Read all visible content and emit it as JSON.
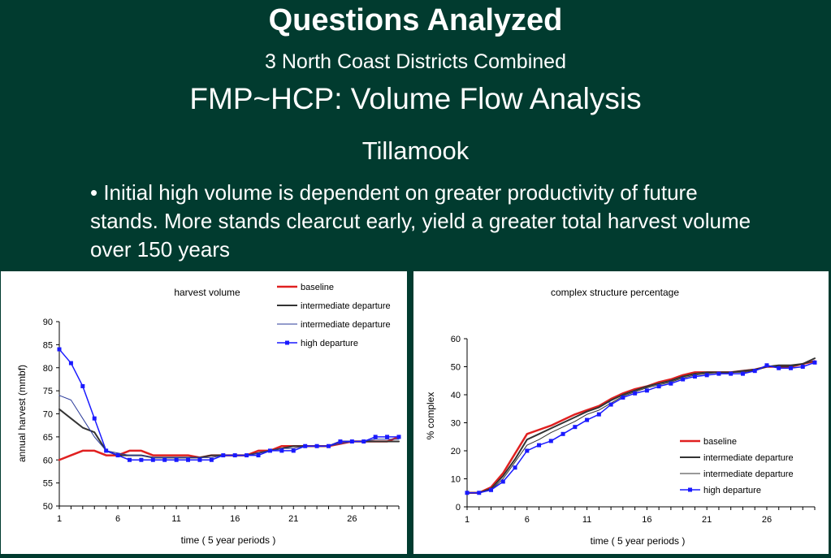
{
  "slide": {
    "title": "Questions Analyzed",
    "subtitle1": "3 North Coast Districts Combined",
    "subtitle2": "FMP~HCP: Volume Flow Analysis",
    "subtitle3": "Tillamook",
    "bullet": "• Initial high volume is dependent on greater productivity of future stands. More stands clearcut early, yield a greater total harvest volume over 150 years"
  },
  "colors": {
    "background": "#013b2f",
    "baseline": "#e02020",
    "intermediate_thick": "#333333",
    "intermediate_thin": "#2a3a9a",
    "high": "#1a1aff"
  },
  "chart_data": [
    {
      "type": "line",
      "title": "harvest volume",
      "xlabel": "time ( 5 year periods )",
      "ylabel": "annual harvest (mmbf)",
      "ylim": [
        50,
        90
      ],
      "xlim": [
        1,
        30
      ],
      "yticks": [
        50,
        55,
        60,
        65,
        70,
        75,
        80,
        85,
        90
      ],
      "xticks": [
        1,
        6,
        11,
        16,
        21,
        26
      ],
      "grid": false,
      "legend_position": "top-right",
      "x": [
        1,
        2,
        3,
        4,
        5,
        6,
        7,
        8,
        9,
        10,
        11,
        12,
        13,
        14,
        15,
        16,
        17,
        18,
        19,
        20,
        21,
        22,
        23,
        24,
        25,
        26,
        27,
        28,
        29,
        30
      ],
      "series": [
        {
          "name": "baseline",
          "color": "#e02020",
          "width": 2.5,
          "marker": false,
          "values": [
            60,
            61,
            62,
            62,
            61,
            61,
            62,
            62,
            61,
            61,
            61,
            61,
            60.5,
            61,
            61,
            61,
            61,
            62,
            62,
            63,
            63,
            63,
            63,
            63,
            63.5,
            64,
            64,
            64,
            64,
            65
          ]
        },
        {
          "name": "intermediate departure",
          "color": "#333333",
          "width": 2,
          "marker": false,
          "values": [
            71,
            69,
            67,
            66,
            62,
            61,
            61,
            61,
            60.5,
            60.5,
            60.5,
            60.5,
            60.5,
            61,
            61,
            61,
            61,
            61.5,
            62,
            62.5,
            63,
            63,
            63,
            63,
            64,
            64,
            64,
            64,
            64,
            64
          ]
        },
        {
          "name": "intermediate departure",
          "color": "#2a3a9a",
          "width": 1,
          "marker": false,
          "values": [
            74,
            73,
            69,
            65,
            62,
            61.5,
            61,
            61,
            60.5,
            60.5,
            60.5,
            60.5,
            60.5,
            60.5,
            61,
            61,
            61,
            61.5,
            62,
            62.5,
            62.5,
            63,
            63,
            63,
            63.5,
            64,
            64,
            64.5,
            64.5,
            64.5
          ]
        },
        {
          "name": "high departure",
          "color": "#1a1aff",
          "width": 1.5,
          "marker": true,
          "values": [
            84,
            81,
            76,
            69,
            62,
            61,
            60,
            60,
            60,
            60,
            60,
            60,
            60,
            60,
            61,
            61,
            61,
            61,
            62,
            62,
            62,
            63,
            63,
            63,
            64,
            64,
            64,
            65,
            65,
            65
          ]
        }
      ]
    },
    {
      "type": "line",
      "title": "complex structure percentage",
      "xlabel": "time ( 5 year periods )",
      "ylabel": "% complex",
      "ylim": [
        0,
        60
      ],
      "xlim": [
        1,
        30
      ],
      "yticks": [
        0,
        10,
        20,
        30,
        40,
        50,
        60
      ],
      "xticks": [
        1,
        6,
        11,
        16,
        21,
        26
      ],
      "grid": false,
      "legend_position": "bottom-right",
      "x": [
        1,
        2,
        3,
        4,
        5,
        6,
        7,
        8,
        9,
        10,
        11,
        12,
        13,
        14,
        15,
        16,
        17,
        18,
        19,
        20,
        21,
        22,
        23,
        24,
        25,
        26,
        27,
        28,
        29,
        30
      ],
      "series": [
        {
          "name": "baseline",
          "color": "#e02020",
          "width": 2.5,
          "marker": false,
          "values": [
            5,
            5,
            7,
            12,
            19,
            26,
            27.5,
            29,
            31,
            33,
            34.5,
            36,
            38.5,
            40.5,
            42,
            43,
            44.5,
            45.5,
            47,
            48,
            48,
            48,
            48,
            48.5,
            49,
            50,
            50,
            50,
            51,
            52
          ]
        },
        {
          "name": "intermediate departure",
          "color": "#333333",
          "width": 2,
          "marker": false,
          "values": [
            5,
            5,
            6.5,
            11,
            17,
            24,
            26,
            28,
            30,
            32,
            34,
            35.5,
            38,
            40,
            41.5,
            43,
            44,
            45,
            46.5,
            47.5,
            48,
            48,
            48,
            48.5,
            49,
            50,
            50.5,
            50.5,
            51,
            53
          ]
        },
        {
          "name": "intermediate departure",
          "color": "#333333",
          "width": 1,
          "marker": false,
          "values": [
            5,
            5,
            6,
            10,
            16,
            22,
            24,
            26.5,
            28.5,
            30.5,
            33,
            34.5,
            37,
            39.5,
            41,
            42.5,
            43.5,
            44.5,
            46,
            47,
            47.5,
            48,
            48,
            48,
            48.5,
            50,
            50,
            50,
            51,
            52
          ]
        },
        {
          "name": "high departure",
          "color": "#1a1aff",
          "width": 1.5,
          "marker": true,
          "values": [
            5,
            5,
            6,
            9,
            14,
            20,
            22,
            23.5,
            26,
            28.5,
            31,
            33,
            36.5,
            39,
            40.5,
            41.5,
            43,
            44,
            45.5,
            46.5,
            47,
            47.5,
            47.5,
            47.5,
            48.5,
            50.5,
            49.5,
            49.5,
            50,
            51.5
          ]
        }
      ]
    }
  ]
}
